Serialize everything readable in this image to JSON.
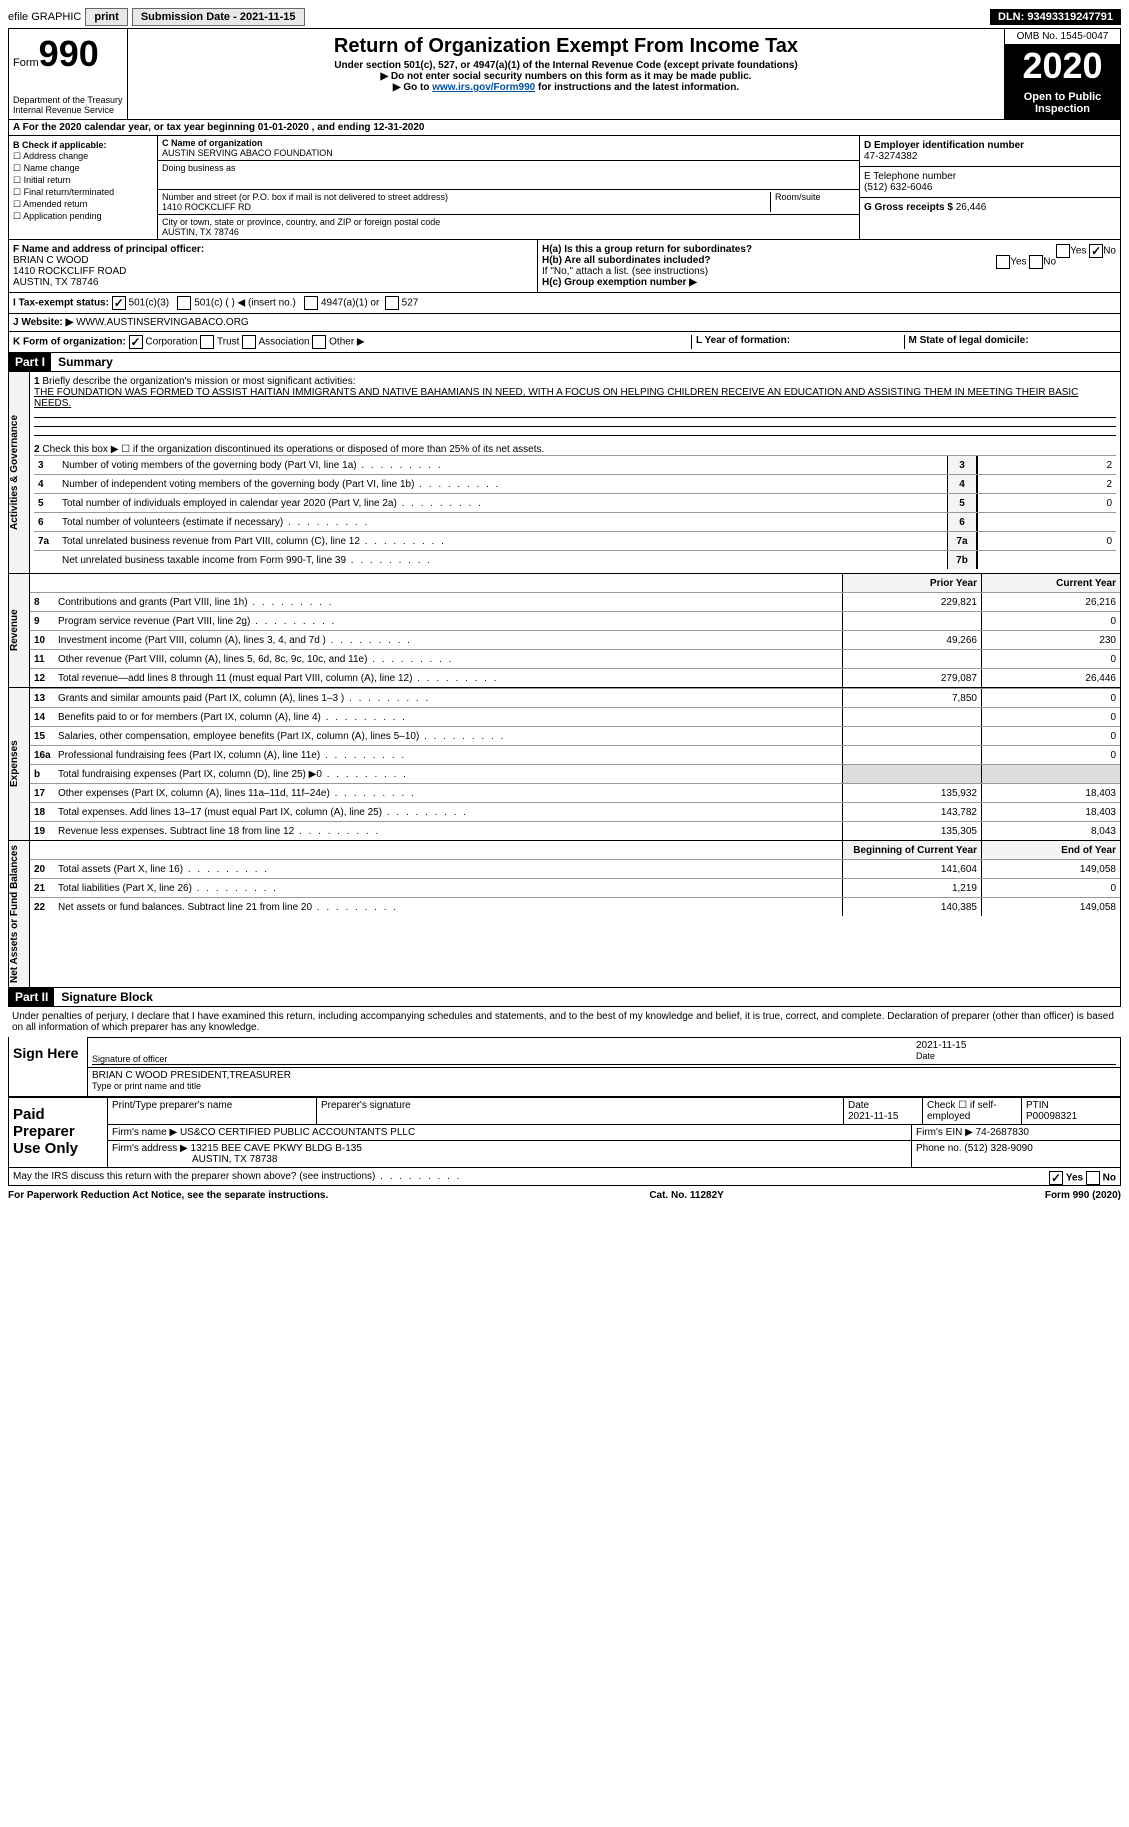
{
  "top_bar": {
    "efile_label": "efile GRAPHIC",
    "print_btn": "print",
    "submission_label": "Submission Date - 2021-11-15",
    "dln": "DLN: 93493319247791"
  },
  "header": {
    "form_prefix": "Form",
    "form_number": "990",
    "dept": "Department of the Treasury",
    "irs": "Internal Revenue Service",
    "title": "Return of Organization Exempt From Income Tax",
    "subtitle": "Under section 501(c), 527, or 4947(a)(1) of the Internal Revenue Code (except private foundations)",
    "warn1": "▶ Do not enter social security numbers on this form as it may be made public.",
    "warn2_prefix": "▶ Go to ",
    "warn2_link": "www.irs.gov/Form990",
    "warn2_suffix": " for instructions and the latest information.",
    "omb": "OMB No. 1545-0047",
    "year": "2020",
    "open_insp": "Open to Public Inspection"
  },
  "period": "A For the 2020 calendar year, or tax year beginning 01-01-2020    , and ending 12-31-2020",
  "section_b": {
    "label": "B Check if applicable:",
    "items": [
      "Address change",
      "Name change",
      "Initial return",
      "Final return/terminated",
      "Amended return",
      "Application pending"
    ]
  },
  "section_c": {
    "label": "C Name of organization",
    "org_name": "AUSTIN SERVING ABACO FOUNDATION",
    "dba_label": "Doing business as",
    "addr_label": "Number and street (or P.O. box if mail is not delivered to street address)",
    "room_label": "Room/suite",
    "addr": "1410 ROCKCLIFF RD",
    "city_label": "City or town, state or province, country, and ZIP or foreign postal code",
    "city": "AUSTIN, TX  78746"
  },
  "section_de": {
    "d_label": "D Employer identification number",
    "ein": "47-3274382",
    "e_label": "E Telephone number",
    "phone": "(512) 632-6046",
    "g_label": "G Gross receipts $",
    "gross": "26,446"
  },
  "section_f": {
    "label": "F Name and address of principal officer:",
    "name": "BRIAN C WOOD",
    "addr1": "1410 ROCKCLIFF ROAD",
    "addr2": "AUSTIN, TX  78746"
  },
  "section_h": {
    "ha_label": "H(a)  Is this a group return for subordinates?",
    "hb_label": "H(b)  Are all subordinates included?",
    "hb_note": "If \"No,\" attach a list. (see instructions)",
    "hc_label": "H(c)  Group exemption number ▶",
    "yes": "Yes",
    "no": "No"
  },
  "tax_status": {
    "label": "I   Tax-exempt status:",
    "opt1": "501(c)(3)",
    "opt2": "501(c) (  ) ◀ (insert no.)",
    "opt3": "4947(a)(1) or",
    "opt4": "527"
  },
  "website": {
    "label": "J   Website: ▶",
    "url": "WWW.AUSTINSERVINGABACO.ORG"
  },
  "korg": {
    "label": "K Form of organization:",
    "opts": [
      "Corporation",
      "Trust",
      "Association",
      "Other ▶"
    ],
    "l_label": "L Year of formation:",
    "m_label": "M State of legal domicile:"
  },
  "part1": {
    "header": "Part I",
    "title": "Summary",
    "line1_label": "Briefly describe the organization's mission or most significant activities:",
    "mission": "THE FOUNDATION WAS FORMED TO ASSIST HAITIAN IMMIGRANTS AND NATIVE BAHAMIANS IN NEED, WITH A FOCUS ON HELPING CHILDREN RECEIVE AN EDUCATION AND ASSISTING THEM IN MEETING THEIR BASIC NEEDS.",
    "line2": "Check this box ▶ ☐  if the organization discontinued its operations or disposed of more than 25% of its net assets.",
    "lines_gov": [
      {
        "n": "3",
        "desc": "Number of voting members of the governing body (Part VI, line 1a)",
        "box": "3",
        "val": "2"
      },
      {
        "n": "4",
        "desc": "Number of independent voting members of the governing body (Part VI, line 1b)",
        "box": "4",
        "val": "2"
      },
      {
        "n": "5",
        "desc": "Total number of individuals employed in calendar year 2020 (Part V, line 2a)",
        "box": "5",
        "val": "0"
      },
      {
        "n": "6",
        "desc": "Total number of volunteers (estimate if necessary)",
        "box": "6",
        "val": ""
      },
      {
        "n": "7a",
        "desc": "Total unrelated business revenue from Part VIII, column (C), line 12",
        "box": "7a",
        "val": "0"
      },
      {
        "n": "",
        "desc": "Net unrelated business taxable income from Form 990-T, line 39",
        "box": "7b",
        "val": ""
      }
    ],
    "prior_year": "Prior Year",
    "current_year": "Current Year",
    "lines_rev": [
      {
        "n": "8",
        "desc": "Contributions and grants (Part VIII, line 1h)",
        "py": "229,821",
        "cy": "26,216"
      },
      {
        "n": "9",
        "desc": "Program service revenue (Part VIII, line 2g)",
        "py": "",
        "cy": "0"
      },
      {
        "n": "10",
        "desc": "Investment income (Part VIII, column (A), lines 3, 4, and 7d )",
        "py": "49,266",
        "cy": "230"
      },
      {
        "n": "11",
        "desc": "Other revenue (Part VIII, column (A), lines 5, 6d, 8c, 9c, 10c, and 11e)",
        "py": "",
        "cy": "0"
      },
      {
        "n": "12",
        "desc": "Total revenue—add lines 8 through 11 (must equal Part VIII, column (A), line 12)",
        "py": "279,087",
        "cy": "26,446"
      }
    ],
    "lines_exp": [
      {
        "n": "13",
        "desc": "Grants and similar amounts paid (Part IX, column (A), lines 1–3 )",
        "py": "7,850",
        "cy": "0"
      },
      {
        "n": "14",
        "desc": "Benefits paid to or for members (Part IX, column (A), line 4)",
        "py": "",
        "cy": "0"
      },
      {
        "n": "15",
        "desc": "Salaries, other compensation, employee benefits (Part IX, column (A), lines 5–10)",
        "py": "",
        "cy": "0"
      },
      {
        "n": "16a",
        "desc": "Professional fundraising fees (Part IX, column (A), line 11e)",
        "py": "",
        "cy": "0"
      },
      {
        "n": "b",
        "desc": "Total fundraising expenses (Part IX, column (D), line 25) ▶0",
        "py": "shaded",
        "cy": "shaded"
      },
      {
        "n": "17",
        "desc": "Other expenses (Part IX, column (A), lines 11a–11d, 11f–24e)",
        "py": "135,932",
        "cy": "18,403"
      },
      {
        "n": "18",
        "desc": "Total expenses. Add lines 13–17 (must equal Part IX, column (A), line 25)",
        "py": "143,782",
        "cy": "18,403"
      },
      {
        "n": "19",
        "desc": "Revenue less expenses. Subtract line 18 from line 12",
        "py": "135,305",
        "cy": "8,043"
      }
    ],
    "begin_year": "Beginning of Current Year",
    "end_year": "End of Year",
    "lines_net": [
      {
        "n": "20",
        "desc": "Total assets (Part X, line 16)",
        "py": "141,604",
        "cy": "149,058"
      },
      {
        "n": "21",
        "desc": "Total liabilities (Part X, line 26)",
        "py": "1,219",
        "cy": "0"
      },
      {
        "n": "22",
        "desc": "Net assets or fund balances. Subtract line 21 from line 20",
        "py": "140,385",
        "cy": "149,058"
      }
    ],
    "vtabs": [
      "Activities & Governance",
      "Revenue",
      "Expenses",
      "Net Assets or Fund Balances"
    ]
  },
  "part2": {
    "header": "Part II",
    "title": "Signature Block",
    "declare": "Under penalties of perjury, I declare that I have examined this return, including accompanying schedules and statements, and to the best of my knowledge and belief, it is true, correct, and complete. Declaration of preparer (other than officer) is based on all information of which preparer has any knowledge.",
    "sign_here": "Sign Here",
    "sig_officer": "Signature of officer",
    "sig_date": "2021-11-15",
    "date_label": "Date",
    "officer_name": "BRIAN C WOOD  PRESIDENT,TREASURER",
    "type_name": "Type or print name and title",
    "paid_prep": "Paid Preparer Use Only",
    "prep_name_label": "Print/Type preparer's name",
    "prep_sig_label": "Preparer's signature",
    "prep_date_label": "Date",
    "prep_date": "2021-11-15",
    "check_if": "Check ☐ if self-employed",
    "ptin_label": "PTIN",
    "ptin": "P00098321",
    "firm_name_label": "Firm's name    ▶",
    "firm_name": "US&CO CERTIFIED PUBLIC ACCOUNTANTS PLLC",
    "firm_ein_label": "Firm's EIN ▶",
    "firm_ein": "74-2687830",
    "firm_addr_label": "Firm's address ▶",
    "firm_addr": "13215 BEE CAVE PKWY BLDG B-135",
    "firm_city": "AUSTIN, TX  78738",
    "phone_label": "Phone no.",
    "firm_phone": "(512) 328-9090",
    "discuss": "May the IRS discuss this return with the preparer shown above? (see instructions)"
  },
  "footer": {
    "paperwork": "For Paperwork Reduction Act Notice, see the separate instructions.",
    "cat": "Cat. No. 11282Y",
    "form": "Form 990 (2020)"
  }
}
